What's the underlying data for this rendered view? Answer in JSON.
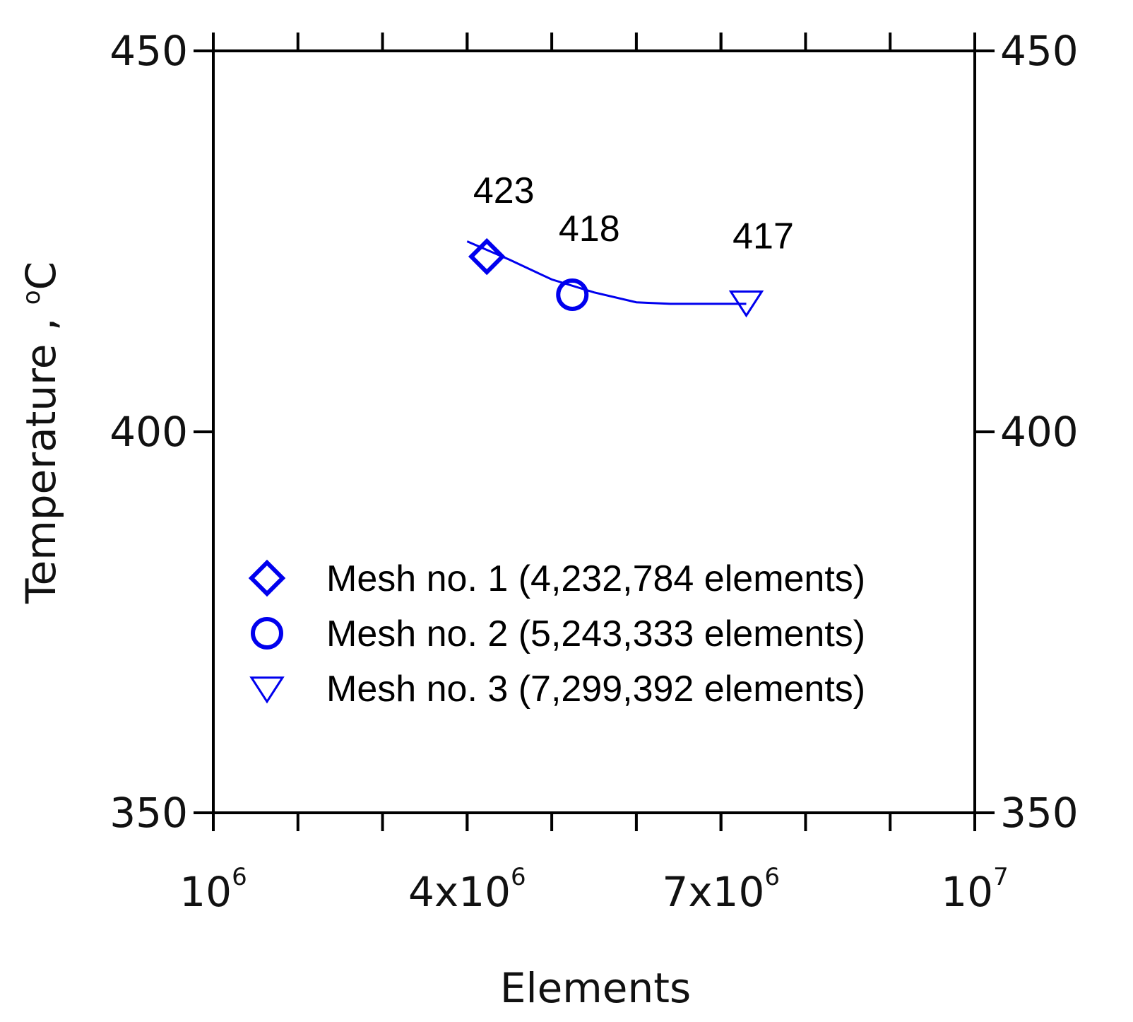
{
  "chart_data": {
    "type": "scatter",
    "xlabel": "Elements",
    "ylabel": "Temperature , ",
    "ylabel_unit_sup": "o",
    "ylabel_unit": "C",
    "xlim": [
      1000000,
      10000000
    ],
    "ylim": [
      350,
      450
    ],
    "y_ticks": [
      {
        "value": 350,
        "label": "350"
      },
      {
        "value": 400,
        "label": "400"
      },
      {
        "value": 450,
        "label": "450"
      }
    ],
    "x_ticks": [
      {
        "value": 1000000,
        "mant": "10",
        "exp": "6"
      },
      {
        "value": 4000000,
        "mant": "4x10",
        "exp": "6"
      },
      {
        "value": 7000000,
        "mant": "7x10",
        "exp": "6"
      },
      {
        "value": 10000000,
        "mant": "10",
        "exp": "7"
      }
    ],
    "x_minor_ticks": [
      2000000,
      3000000,
      4000000,
      5000000,
      6000000,
      7000000,
      8000000,
      9000000
    ],
    "series": [
      {
        "name": "Mesh no. 1 (4,232,784 elements)",
        "marker": "diamond",
        "x": 4232784,
        "y": 423,
        "label": "423"
      },
      {
        "name": "Mesh no. 2 (5,243,333 elements)",
        "marker": "circle",
        "x": 5243333,
        "y": 418,
        "label": "418"
      },
      {
        "name": "Mesh no. 3 (7,299,392 elements)",
        "marker": "triangle-down",
        "x": 7299392,
        "y": 417,
        "label": "417"
      }
    ],
    "fit_line": [
      {
        "x": 4000000,
        "y": 425
      },
      {
        "x": 4500000,
        "y": 422.6
      },
      {
        "x": 5000000,
        "y": 420
      },
      {
        "x": 5500000,
        "y": 418.3
      },
      {
        "x": 6000000,
        "y": 417
      },
      {
        "x": 6400000,
        "y": 416.8
      },
      {
        "x": 7299392,
        "y": 416.8
      }
    ],
    "grid": false,
    "legend_position": "lower-center",
    "colors": {
      "marker": "#0000ee",
      "line": "#0000ee",
      "axis": "#000000"
    }
  }
}
